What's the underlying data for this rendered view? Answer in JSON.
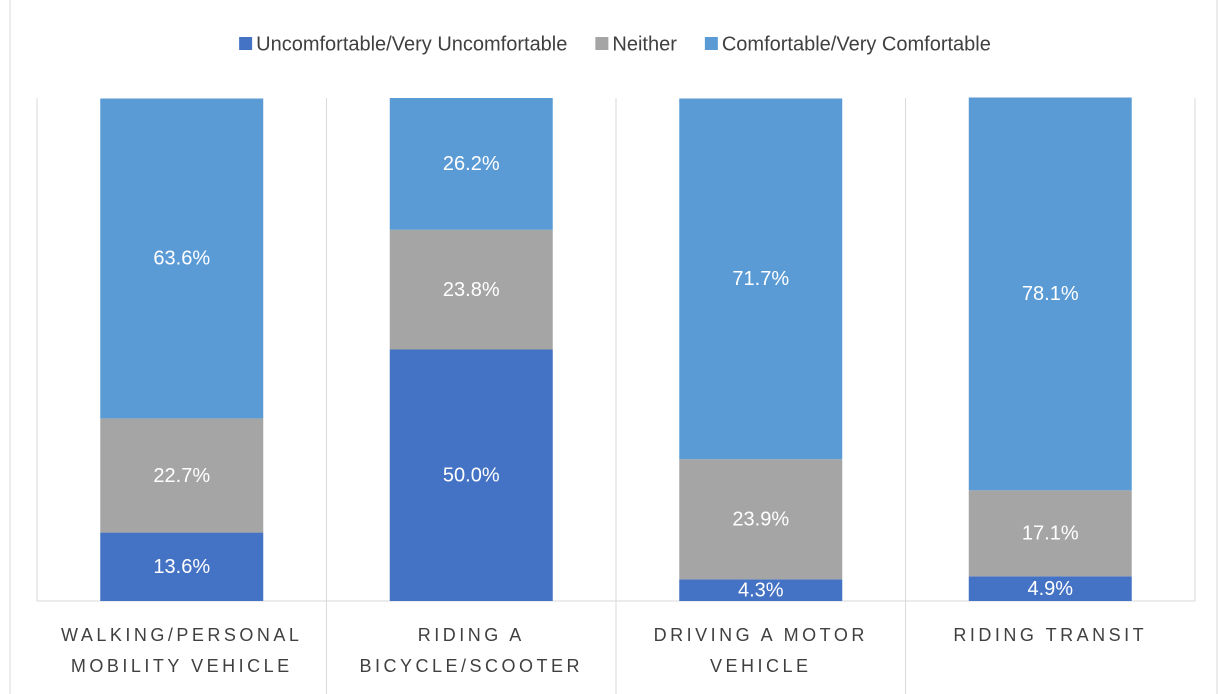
{
  "chart_data": {
    "type": "stacked_bar",
    "categories": [
      "WALKING/PERSONAL MOBILITY VEHICLE",
      "RIDING A BICYCLE/SCOOTER",
      "DRIVING A MOTOR VEHICLE",
      "RIDING TRANSIT"
    ],
    "series": [
      {
        "name": "Uncomfortable/Very Uncomfortable",
        "color": "#4472c4",
        "values": [
          13.6,
          50.0,
          4.3,
          4.9
        ],
        "value_labels": [
          "13.6%",
          "50.0%",
          "4.3%",
          "4.9%"
        ]
      },
      {
        "name": "Neither",
        "color": "#a5a5a5",
        "values": [
          22.7,
          23.8,
          23.9,
          17.1
        ],
        "value_labels": [
          "22.7%",
          "23.8%",
          "23.9%",
          "17.1%"
        ]
      },
      {
        "name": "Comfortable/Very Comfortable",
        "color": "#5b9bd5",
        "values": [
          63.6,
          26.2,
          71.7,
          78.1
        ],
        "value_labels": [
          "63.6%",
          "26.2%",
          "71.7%",
          "78.1%"
        ]
      }
    ],
    "ylim": [
      0,
      100
    ],
    "legend": "top"
  }
}
